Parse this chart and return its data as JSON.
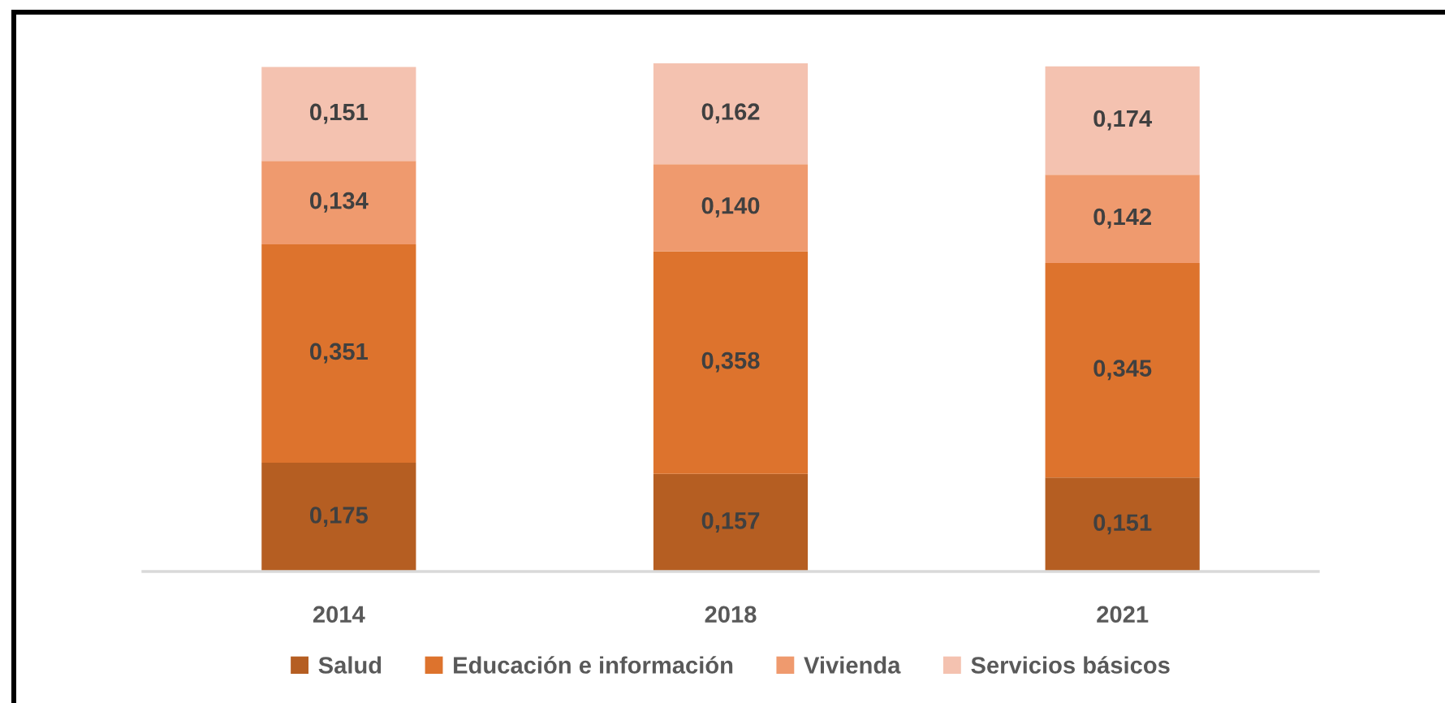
{
  "chart_data": {
    "type": "bar",
    "stacked": true,
    "categories": [
      "2014",
      "2018",
      "2021"
    ],
    "series": [
      {
        "name": "Salud",
        "color": "#b55e22",
        "values": [
          0.175,
          0.157,
          0.151
        ],
        "value_labels": [
          "0,175",
          "0,157",
          "0,151"
        ]
      },
      {
        "name": "Educación e información",
        "color": "#dd732d",
        "values": [
          0.351,
          0.358,
          0.345
        ],
        "value_labels": [
          "0,351",
          "0,358",
          "0,345"
        ]
      },
      {
        "name": "Vivienda",
        "color": "#ef9a6e",
        "values": [
          0.134,
          0.14,
          0.142
        ],
        "value_labels": [
          "0,134",
          "0,140",
          "0,142"
        ]
      },
      {
        "name": "Servicios básicos",
        "color": "#f4c2b0",
        "values": [
          0.151,
          0.162,
          0.174
        ],
        "value_labels": [
          "0,151",
          "0,162",
          "0,174"
        ]
      }
    ],
    "legend": "bottom",
    "grid": false
  }
}
